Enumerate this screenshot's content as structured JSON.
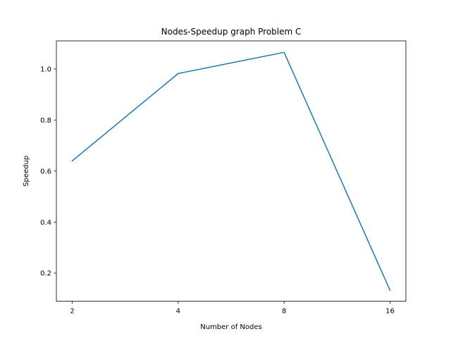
{
  "chart_data": {
    "type": "line",
    "title": "Nodes-Speedup graph Problem C",
    "xlabel": "Number of Nodes",
    "ylabel": "Speedup",
    "x_scale": "log2",
    "x": [
      2,
      4,
      8,
      16
    ],
    "x_tick_labels": [
      "2",
      "4",
      "8",
      "16"
    ],
    "series": [
      {
        "values": [
          0.64,
          0.982,
          1.065,
          0.133
        ],
        "color": "#1f77b4"
      }
    ],
    "ylim": [
      0.09,
      1.11
    ],
    "y_ticks": [
      0.2,
      0.4,
      0.6,
      0.8,
      1.0
    ],
    "y_tick_labels": [
      "0.2",
      "0.4",
      "0.6",
      "0.8",
      "1.0"
    ],
    "grid": false,
    "legend": false
  }
}
